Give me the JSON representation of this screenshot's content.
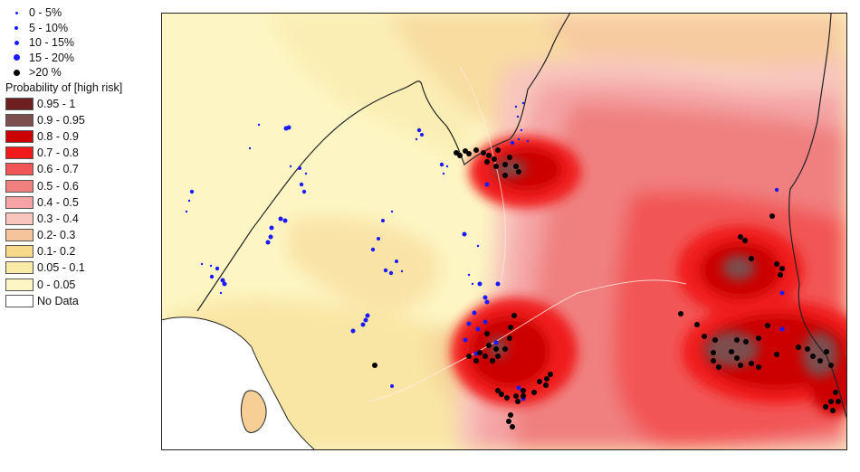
{
  "point_legend": [
    {
      "label": "0 - 5%",
      "color": "#1a1aff",
      "icon": "tiny-blue-dot"
    },
    {
      "label": "5 - 10%",
      "color": "#1a1aff",
      "icon": "small-blue-dot"
    },
    {
      "label": "10 - 15%",
      "color": "#1a1aff",
      "icon": "medium-blue-dot"
    },
    {
      "label": "15 - 20%",
      "color": "#1a1aff",
      "icon": "large-blue-dot"
    },
    {
      "label": ">20 %",
      "color": "#000000",
      "icon": "black-dot"
    }
  ],
  "probability_legend": {
    "title": "Probability of [high risk]",
    "classes": [
      {
        "label": "0.95 - 1",
        "color": "#6e2020"
      },
      {
        "label": "0.9  - 0.95",
        "color": "#7d4e4e"
      },
      {
        "label": "0.8 - 0.9",
        "color": "#cc0000"
      },
      {
        "label": "0.7 - 0.8",
        "color": "#f01a1a"
      },
      {
        "label": "0.6 - 0.7",
        "color": "#f25555"
      },
      {
        "label": "0.5 - 0.6",
        "color": "#f08080"
      },
      {
        "label": "0.4 - 0.5",
        "color": "#f4a4a4"
      },
      {
        "label": "0.3 - 0.4",
        "color": "#f8c6bc"
      },
      {
        "label": "0.2- 0.3",
        "color": "#f6c49a"
      },
      {
        "label": "0.1- 0.2",
        "color": "#f7d98a"
      },
      {
        "label": "0.05 - 0.1",
        "color": "#faeaa8"
      },
      {
        "label": "0 - 0.05",
        "color": "#fdf6c4"
      },
      {
        "label": "No Data",
        "color": "#ffffff"
      }
    ]
  }
}
